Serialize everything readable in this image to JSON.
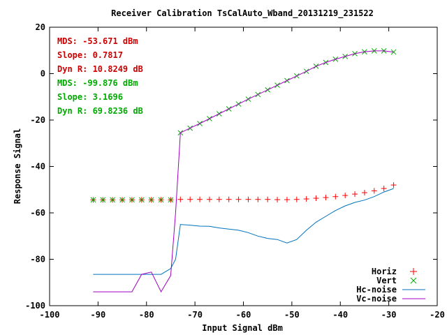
{
  "chart_data": {
    "type": "line",
    "title": "Receiver Calibration TsCalAuto_Wband_20131219_231522",
    "xlabel": "Input Signal dBm",
    "ylabel": "Response Signal",
    "xlim": [
      -100,
      -20
    ],
    "ylim": [
      -100,
      20
    ],
    "x_ticks": [
      -100,
      -90,
      -80,
      -70,
      -60,
      -50,
      -40,
      -30,
      -20
    ],
    "y_ticks": [
      -100,
      -80,
      -60,
      -40,
      -20,
      0,
      20
    ],
    "grid": false,
    "legend_position": "bottom-right",
    "annotations": [
      {
        "text": "MDS: -53.671 dBm",
        "color": "#cc0000"
      },
      {
        "text": "Slope: 0.7817",
        "color": "#cc0000"
      },
      {
        "text": "Dyn R: 10.8249 dB",
        "color": "#cc0000"
      },
      {
        "text": "MDS: -99.876 dBm",
        "color": "#00aa00"
      },
      {
        "text": "Slope: 3.1696",
        "color": "#00aa00"
      },
      {
        "text": "Dyn R: 69.8236 dB",
        "color": "#00aa00"
      }
    ],
    "series": [
      {
        "name": "Horiz",
        "style": "points",
        "marker": "plus",
        "color": "#ff0000",
        "x": [
          -91,
          -89,
          -87,
          -85,
          -83,
          -81,
          -79,
          -77,
          -75,
          -73,
          -71,
          -69,
          -67,
          -65,
          -63,
          -61,
          -59,
          -57,
          -55,
          -53,
          -51,
          -49,
          -47,
          -45,
          -43,
          -41,
          -39,
          -37,
          -35,
          -33,
          -31,
          -29
        ],
        "y": [
          -54.4,
          -54.4,
          -54.4,
          -54.4,
          -54.4,
          -54.4,
          -54.4,
          -54.4,
          -54.4,
          -54.2,
          -54.2,
          -54.2,
          -54.2,
          -54.2,
          -54.2,
          -54.2,
          -54.2,
          -54.2,
          -54.2,
          -54.3,
          -54.3,
          -54.2,
          -54.0,
          -53.7,
          -53.4,
          -53.0,
          -52.5,
          -51.9,
          -51.3,
          -50.5,
          -49.5,
          -48.0
        ]
      },
      {
        "name": "Vert",
        "style": "points",
        "marker": "cross",
        "color": "#00aa00",
        "x": [
          -91,
          -89,
          -87,
          -85,
          -83,
          -81,
          -79,
          -77,
          -75,
          -73,
          -71,
          -69,
          -67,
          -65,
          -63,
          -61,
          -59,
          -57,
          -55,
          -53,
          -51,
          -49,
          -47,
          -45,
          -43,
          -41,
          -39,
          -37,
          -35,
          -33,
          -31,
          -29
        ],
        "y": [
          -54.4,
          -54.4,
          -54.4,
          -54.4,
          -54.4,
          -54.4,
          -54.4,
          -54.4,
          -54.4,
          -25.5,
          -23.5,
          -21.5,
          -19.4,
          -17.3,
          -15.2,
          -13.1,
          -11.0,
          -9.0,
          -7.0,
          -5.0,
          -3.0,
          -1.0,
          1.0,
          3.2,
          4.8,
          6.2,
          7.4,
          8.6,
          9.4,
          9.8,
          9.8,
          9.3
        ]
      },
      {
        "name": "Hc-noise",
        "style": "line",
        "color": "#0072bd",
        "x": [
          -91,
          -89,
          -87,
          -85,
          -83,
          -81,
          -79,
          -77,
          -75,
          -74,
          -73,
          -71,
          -69,
          -67,
          -65,
          -63,
          -61,
          -59,
          -57,
          -55,
          -53,
          -51,
          -49,
          -47,
          -45,
          -43,
          -41,
          -39,
          -37,
          -35,
          -33,
          -31,
          -29
        ],
        "y": [
          -86.5,
          -86.5,
          -86.5,
          -86.5,
          -86.5,
          -86.5,
          -86.5,
          -86.5,
          -84.0,
          -80.0,
          -65.0,
          -65.3,
          -65.7,
          -65.8,
          -66.5,
          -67.0,
          -67.5,
          -68.5,
          -70.0,
          -71.0,
          -71.5,
          -73.0,
          -71.5,
          -67.5,
          -64.0,
          -61.5,
          -59.0,
          -57.0,
          -55.5,
          -54.5,
          -53.0,
          -51.0,
          -49.5
        ]
      },
      {
        "name": "Vc-noise",
        "style": "line",
        "color": "#a000c0",
        "x": [
          -91,
          -89,
          -87,
          -85,
          -83,
          -81,
          -79,
          -77,
          -75,
          -74,
          -73,
          -71,
          -69,
          -67,
          -65,
          -63,
          -61,
          -59,
          -57,
          -55,
          -53,
          -51,
          -49,
          -47,
          -45,
          -43,
          -41,
          -39,
          -37,
          -35,
          -33,
          -31,
          -29
        ],
        "y": [
          -94.0,
          -94.0,
          -94.0,
          -94.0,
          -94.0,
          -86.5,
          -85.5,
          -94.0,
          -87.0,
          -60.0,
          -25.5,
          -23.5,
          -21.5,
          -19.4,
          -17.3,
          -15.2,
          -13.1,
          -11.0,
          -9.0,
          -7.0,
          -5.0,
          -3.0,
          -1.0,
          1.0,
          3.2,
          4.8,
          6.2,
          7.4,
          8.6,
          9.4,
          9.8,
          9.8,
          9.3
        ]
      }
    ]
  }
}
